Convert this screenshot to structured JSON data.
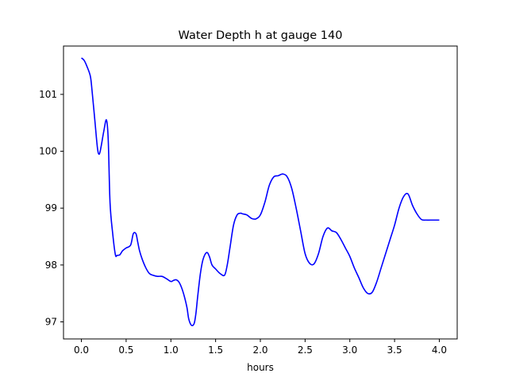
{
  "chart_data": {
    "type": "line",
    "title": "Water Depth h at gauge 140",
    "xlabel": "hours",
    "ylabel": "",
    "xlim": [
      -0.2,
      4.2
    ],
    "ylim": [
      96.7,
      101.85
    ],
    "grid": false,
    "legend": "none",
    "line_color": "#0000ff",
    "x_ticks": [
      {
        "value": 0.0,
        "label": "0.0"
      },
      {
        "value": 0.5,
        "label": "0.5"
      },
      {
        "value": 1.0,
        "label": "1.0"
      },
      {
        "value": 1.5,
        "label": "1.5"
      },
      {
        "value": 2.0,
        "label": "2.0"
      },
      {
        "value": 2.5,
        "label": "2.5"
      },
      {
        "value": 3.0,
        "label": "3.0"
      },
      {
        "value": 3.5,
        "label": "3.5"
      },
      {
        "value": 4.0,
        "label": "4.0"
      }
    ],
    "y_ticks": [
      {
        "value": 97,
        "label": "97"
      },
      {
        "value": 98,
        "label": "98"
      },
      {
        "value": 99,
        "label": "99"
      },
      {
        "value": 100,
        "label": "100"
      },
      {
        "value": 101,
        "label": "101"
      }
    ],
    "series": [
      {
        "x": [
          0.0,
          0.03,
          0.06,
          0.1,
          0.12,
          0.15,
          0.18,
          0.2,
          0.22,
          0.25,
          0.28,
          0.3,
          0.32,
          0.35,
          0.38,
          0.4,
          0.43,
          0.46,
          0.5,
          0.55,
          0.58,
          0.61,
          0.63,
          0.65,
          0.68,
          0.72,
          0.76,
          0.8,
          0.85,
          0.9,
          0.95,
          1.0,
          1.03,
          1.06,
          1.09,
          1.12,
          1.15,
          1.18,
          1.2,
          1.23,
          1.26,
          1.28,
          1.3,
          1.33,
          1.36,
          1.4,
          1.43,
          1.46,
          1.5,
          1.55,
          1.6,
          1.63,
          1.66,
          1.7,
          1.74,
          1.78,
          1.8,
          1.85,
          1.9,
          1.95,
          2.0,
          2.05,
          2.1,
          2.15,
          2.2,
          2.25,
          2.3,
          2.35,
          2.4,
          2.45,
          2.5,
          2.55,
          2.6,
          2.65,
          2.7,
          2.75,
          2.8,
          2.85,
          2.9,
          2.95,
          3.0,
          3.05,
          3.1,
          3.15,
          3.2,
          3.25,
          3.3,
          3.35,
          3.4,
          3.45,
          3.5,
          3.55,
          3.6,
          3.65,
          3.7,
          3.75,
          3.8,
          3.85,
          3.9,
          3.95,
          4.0
        ],
        "y": [
          101.64,
          101.6,
          101.5,
          101.32,
          101.05,
          100.55,
          100.05,
          99.95,
          100.08,
          100.35,
          100.55,
          100.2,
          99.1,
          98.55,
          98.18,
          98.17,
          98.18,
          98.25,
          98.3,
          98.35,
          98.55,
          98.55,
          98.4,
          98.25,
          98.1,
          97.95,
          97.85,
          97.82,
          97.8,
          97.8,
          97.76,
          97.71,
          97.73,
          97.74,
          97.7,
          97.6,
          97.45,
          97.25,
          97.05,
          96.94,
          96.97,
          97.15,
          97.45,
          97.85,
          98.1,
          98.22,
          98.15,
          98.0,
          97.93,
          97.85,
          97.82,
          98.0,
          98.3,
          98.7,
          98.88,
          98.91,
          98.9,
          98.88,
          98.82,
          98.81,
          98.88,
          99.1,
          99.4,
          99.55,
          99.57,
          99.6,
          99.55,
          99.35,
          99.0,
          98.6,
          98.2,
          98.03,
          98.02,
          98.2,
          98.5,
          98.65,
          98.6,
          98.57,
          98.45,
          98.3,
          98.15,
          97.95,
          97.78,
          97.6,
          97.5,
          97.52,
          97.7,
          97.95,
          98.2,
          98.45,
          98.7,
          99.0,
          99.2,
          99.25,
          99.05,
          98.9,
          98.8,
          98.79,
          98.79,
          98.79,
          98.79
        ]
      }
    ]
  }
}
